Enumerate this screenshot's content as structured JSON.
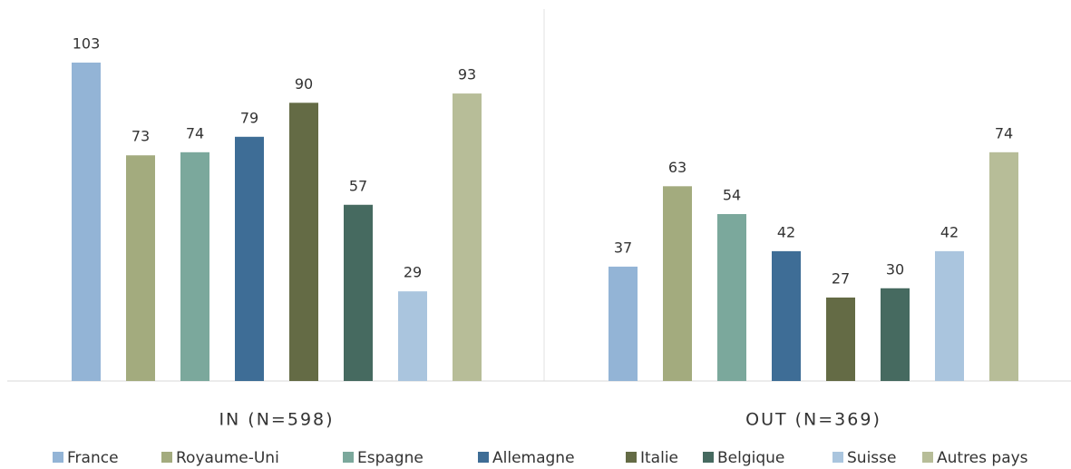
{
  "chart_data": {
    "type": "bar",
    "categories": [
      "IN (N=598)",
      "OUT (N=369)"
    ],
    "series": [
      {
        "name": "France",
        "color": "#93b4d6",
        "values": [
          103,
          37
        ]
      },
      {
        "name": "Royaume-Uni",
        "color": "#a3ab7e",
        "values": [
          73,
          63
        ]
      },
      {
        "name": "Espagne",
        "color": "#7ba89c",
        "values": [
          74,
          54
        ]
      },
      {
        "name": "Allemagne",
        "color": "#3e6d96",
        "values": [
          79,
          42
        ]
      },
      {
        "name": "Italie",
        "color": "#646b45",
        "values": [
          90,
          27
        ]
      },
      {
        "name": "Belgique",
        "color": "#466a60",
        "values": [
          57,
          30
        ]
      },
      {
        "name": "Suisse",
        "color": "#aac5de",
        "values": [
          29,
          42
        ]
      },
      {
        "name": "Autres pays",
        "color": "#b7bd98",
        "values": [
          93,
          74
        ]
      }
    ],
    "legend": "bottom"
  }
}
